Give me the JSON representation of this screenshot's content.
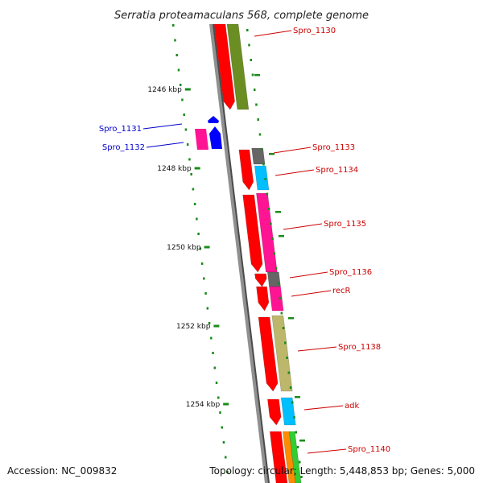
{
  "title": "Serratia proteamaculans 568, complete genome",
  "accession": "Accession: NC_009832",
  "topology": "Topology: circular; Length: 5,448,853 bp; Genes: 5,000",
  "colors": {
    "red": "#ff0000",
    "olive": "#6b8e23",
    "blue": "#0000ff",
    "magenta": "#ff1493",
    "gray": "#666666",
    "cyan": "#00bfff",
    "khaki": "#bdb76b",
    "orange": "#ff8c00",
    "green": "#32cd32",
    "label_red": "#cc0000",
    "label_blue": "#0000cc",
    "tick_green": "#1a8c1a"
  },
  "ticks": [
    {
      "label": "1246 kbp"
    },
    {
      "label": "1248 kbp"
    },
    {
      "label": "1250 kbp"
    },
    {
      "label": "1252 kbp"
    },
    {
      "label": "1254 kbp"
    }
  ],
  "genes": [
    {
      "name": "Spro_1130",
      "label_color": "#cc0000"
    },
    {
      "name": "Spro_1131",
      "label_color": "#0000cc"
    },
    {
      "name": "Spro_1132",
      "label_color": "#0000cc"
    },
    {
      "name": "Spro_1133",
      "label_color": "#cc0000"
    },
    {
      "name": "Spro_1134",
      "label_color": "#cc0000"
    },
    {
      "name": "Spro_1135",
      "label_color": "#cc0000"
    },
    {
      "name": "Spro_1136",
      "label_color": "#cc0000"
    },
    {
      "name": "recR",
      "label_color": "#cc0000"
    },
    {
      "name": "Spro_1138",
      "label_color": "#cc0000"
    },
    {
      "name": "adk",
      "label_color": "#cc0000"
    },
    {
      "name": "Spro_1140",
      "label_color": "#cc0000"
    }
  ]
}
